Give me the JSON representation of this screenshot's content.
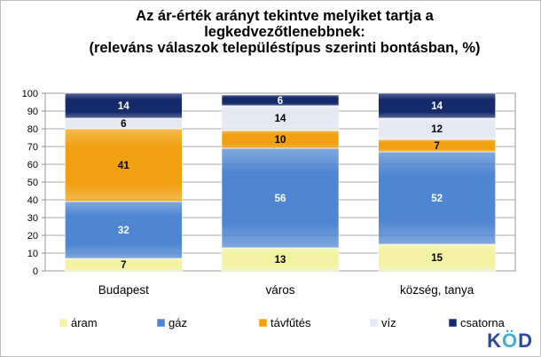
{
  "chart_data": {
    "type": "stacked-bar",
    "title_lines": [
      "Az ár-érték arányt tekintve melyiket tartja a",
      "legkedvezőtlenebbnek:",
      "(releváns válaszok településtípus szerinti bontásban, %)"
    ],
    "categories": [
      "Budapest",
      "város",
      "község, tanya"
    ],
    "series": [
      {
        "name": "áram",
        "color": "#f2f2a2",
        "values": [
          7,
          13,
          15
        ]
      },
      {
        "name": "gáz",
        "color": "#4f86d1",
        "values": [
          32,
          56,
          52
        ]
      },
      {
        "name": "távfűtés",
        "color": "#f0a010",
        "values": [
          41,
          10,
          7
        ]
      },
      {
        "name": "víz",
        "color": "#e4e8f2",
        "values": [
          6,
          14,
          12
        ]
      },
      {
        "name": "csatorna",
        "color": "#152a6b",
        "values": [
          14,
          6,
          14
        ]
      }
    ],
    "yticks": [
      "0",
      "10",
      "20",
      "30",
      "40",
      "50",
      "60",
      "70",
      "80",
      "90",
      "100"
    ],
    "ylim": [
      0,
      100
    ],
    "grid": true,
    "legend_position": "bottom"
  },
  "logo": {
    "letters": [
      "K",
      "Ö",
      "D"
    ],
    "colors": [
      "#2a4a9a",
      "#3bb0d0",
      "#2a4a9a"
    ]
  }
}
